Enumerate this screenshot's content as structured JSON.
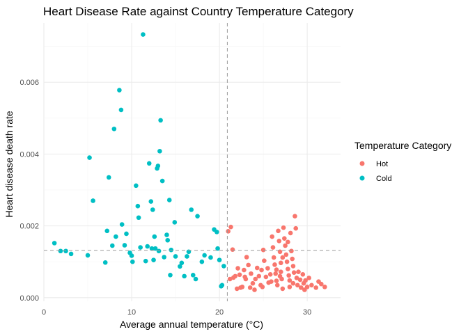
{
  "chart_data": {
    "type": "scatter",
    "title": "Heart Disease Rate against Country Temperature Category",
    "xlabel": "Average annual temperature (°C)",
    "ylabel": "Heart disease death rate",
    "xlim": [
      0,
      33.8
    ],
    "ylim": [
      -0.0001,
      0.00765
    ],
    "x_ticks": [
      0,
      10,
      20,
      30
    ],
    "x_tick_labels": [
      "0",
      "10",
      "20",
      "30"
    ],
    "y_ticks": [
      0,
      0.002,
      0.004,
      0.006
    ],
    "y_tick_labels": [
      "0.000",
      "0.002",
      "0.004",
      "0.006"
    ],
    "grid": true,
    "legend_position": "right",
    "legend_title": "Temperature Category",
    "reference_lines": {
      "vertical_x": 20.9,
      "horizontal_y": 0.00132
    },
    "series": [
      {
        "name": "Hot",
        "color": "#F8766D",
        "points": [
          [
            21.0,
            0.00185
          ],
          [
            21.3,
            0.00197
          ],
          [
            21.5,
            0.00134
          ],
          [
            21.2,
            0.00052
          ],
          [
            21.6,
            0.00056
          ],
          [
            21.8,
            0.0006
          ],
          [
            22.0,
            0.00025
          ],
          [
            22.1,
            0.00082
          ],
          [
            22.3,
            0.00064
          ],
          [
            22.4,
            0.00028
          ],
          [
            22.6,
            0.0003
          ],
          [
            22.8,
            0.00077
          ],
          [
            23.0,
            0.00052
          ],
          [
            23.1,
            0.00113
          ],
          [
            23.3,
            0.00091
          ],
          [
            23.5,
            0.00028
          ],
          [
            23.6,
            0.00067
          ],
          [
            23.8,
            0.0004
          ],
          [
            24.0,
            0.00022
          ],
          [
            24.1,
            0.00052
          ],
          [
            24.3,
            0.00083
          ],
          [
            24.5,
            0.0006
          ],
          [
            24.7,
            0.00035
          ],
          [
            24.8,
            0.00077
          ],
          [
            25.0,
            0.00133
          ],
          [
            25.1,
            0.00103
          ],
          [
            25.3,
            0.00058
          ],
          [
            25.5,
            0.00082
          ],
          [
            25.6,
            0.00042
          ],
          [
            25.8,
            0.00065
          ],
          [
            26.0,
            0.0017
          ],
          [
            26.1,
            0.0014
          ],
          [
            26.2,
            0.00112
          ],
          [
            26.3,
            0.00092
          ],
          [
            26.4,
            0.00067
          ],
          [
            26.5,
            0.00047
          ],
          [
            26.6,
            0.00035
          ],
          [
            26.7,
            0.00186
          ],
          [
            26.8,
            0.00158
          ],
          [
            26.9,
            0.00128
          ],
          [
            27.0,
            0.00097
          ],
          [
            27.0,
            0.00072
          ],
          [
            27.1,
            0.00052
          ],
          [
            27.2,
            0.00025
          ],
          [
            27.3,
            0.00195
          ],
          [
            27.4,
            0.00165
          ],
          [
            27.5,
            0.00145
          ],
          [
            27.6,
            0.0012
          ],
          [
            27.7,
            0.001
          ],
          [
            27.8,
            0.0008
          ],
          [
            27.9,
            0.00062
          ],
          [
            28.0,
            0.00048
          ],
          [
            28.0,
            0.0003
          ],
          [
            28.1,
            0.0018
          ],
          [
            28.2,
            0.0013
          ],
          [
            28.3,
            0.00108
          ],
          [
            28.4,
            0.00088
          ],
          [
            28.5,
            0.0007
          ],
          [
            28.6,
            0.00227
          ],
          [
            28.7,
            0.00193
          ],
          [
            28.8,
            0.00055
          ],
          [
            28.9,
            0.00035
          ],
          [
            29.0,
            0.00072
          ],
          [
            29.2,
            0.0005
          ],
          [
            29.3,
            0.00028
          ],
          [
            29.5,
            0.00065
          ],
          [
            29.6,
            0.0004
          ],
          [
            29.7,
            0.00022
          ],
          [
            29.8,
            0.00048
          ],
          [
            30.0,
            0.0003
          ],
          [
            30.2,
            0.00055
          ],
          [
            30.5,
            0.00035
          ],
          [
            31.0,
            0.00028
          ],
          [
            31.3,
            0.00045
          ],
          [
            31.6,
            0.00038
          ],
          [
            32.0,
            0.0003
          ],
          [
            27.2,
            0.00112
          ],
          [
            26.5,
            0.00078
          ],
          [
            28.4,
            0.0004
          ],
          [
            27.8,
            0.00155
          ],
          [
            26.9,
            0.0006
          ],
          [
            25.9,
            0.00045
          ],
          [
            24.9,
            0.0003
          ],
          [
            22.9,
            0.00058
          ]
        ]
      },
      {
        "name": "Cold",
        "color": "#00BFC4",
        "points": [
          [
            1.2,
            0.00152
          ],
          [
            1.9,
            0.0013
          ],
          [
            2.5,
            0.0013
          ],
          [
            3.1,
            0.00122
          ],
          [
            5.0,
            0.00118
          ],
          [
            5.2,
            0.0039
          ],
          [
            5.6,
            0.0027
          ],
          [
            7.0,
            0.00098
          ],
          [
            7.2,
            0.00186
          ],
          [
            7.4,
            0.00335
          ],
          [
            7.8,
            0.00145
          ],
          [
            8.0,
            0.0047
          ],
          [
            8.2,
            0.0017
          ],
          [
            8.6,
            0.00578
          ],
          [
            8.8,
            0.00523
          ],
          [
            8.9,
            0.00204
          ],
          [
            9.2,
            0.00146
          ],
          [
            9.4,
            0.00178
          ],
          [
            9.8,
            0.00125
          ],
          [
            10.0,
            0.00117
          ],
          [
            10.1,
            0.001
          ],
          [
            10.5,
            0.00312
          ],
          [
            10.7,
            0.00255
          ],
          [
            10.8,
            0.00223
          ],
          [
            11.0,
            0.0014
          ],
          [
            11.3,
            0.00733
          ],
          [
            11.6,
            0.00102
          ],
          [
            11.8,
            0.00143
          ],
          [
            12.0,
            0.00374
          ],
          [
            12.2,
            0.00268
          ],
          [
            12.4,
            0.00245
          ],
          [
            12.5,
            0.00105
          ],
          [
            12.6,
            0.0017
          ],
          [
            12.7,
            0.00137
          ],
          [
            12.9,
            0.0036
          ],
          [
            13.0,
            0.00367
          ],
          [
            13.1,
            0.0013
          ],
          [
            13.2,
            0.00408
          ],
          [
            13.3,
            0.00494
          ],
          [
            13.5,
            0.00325
          ],
          [
            13.7,
            0.00113
          ],
          [
            14.0,
            0.00175
          ],
          [
            14.3,
            0.00272
          ],
          [
            14.4,
            0.00063
          ],
          [
            14.5,
            0.00133
          ],
          [
            14.9,
            0.0021
          ],
          [
            15.0,
            0.00115
          ],
          [
            15.5,
            0.00087
          ],
          [
            15.7,
            0.00097
          ],
          [
            16.0,
            0.0006
          ],
          [
            16.3,
            0.00115
          ],
          [
            16.5,
            0.00128
          ],
          [
            16.8,
            0.00245
          ],
          [
            17.0,
            0.00063
          ],
          [
            17.3,
            0.00052
          ],
          [
            17.5,
            0.00227
          ],
          [
            18.0,
            0.001
          ],
          [
            18.3,
            0.00118
          ],
          [
            19.0,
            0.00112
          ],
          [
            19.4,
            0.0019
          ],
          [
            19.7,
            0.00183
          ],
          [
            19.8,
            0.00137
          ],
          [
            20.0,
            0.00105
          ],
          [
            20.2,
            0.00032
          ],
          [
            20.3,
            0.00035
          ],
          [
            20.5,
            0.00088
          ],
          [
            12.3,
            0.00137
          ],
          [
            14.1,
            0.0016
          ]
        ]
      }
    ]
  }
}
